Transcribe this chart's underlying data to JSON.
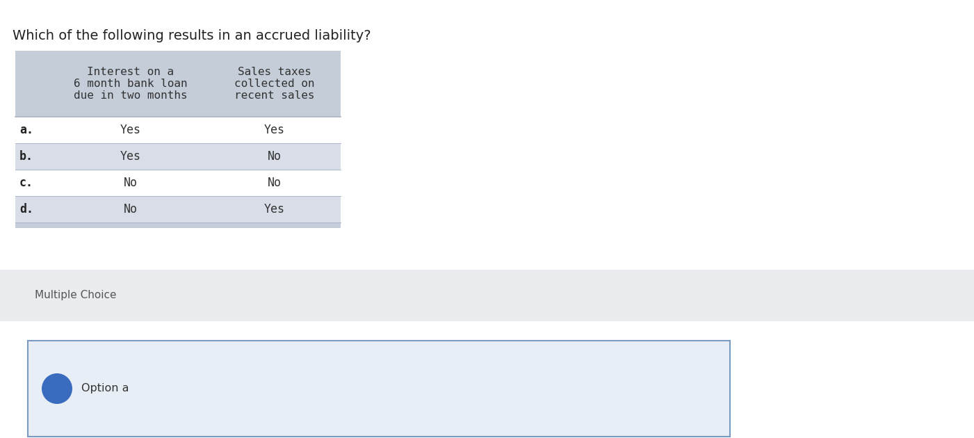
{
  "question": "Which of the following results in an accrued liability?",
  "question_fontsize": 14,
  "question_color": "#222222",
  "table": {
    "col1_header": "Interest on a\n6 month bank loan\ndue in two months",
    "col2_header": "Sales taxes\ncollected on\nrecent sales",
    "rows": [
      {
        "label": "a.",
        "col1": "Yes",
        "col2": "Yes"
      },
      {
        "label": "b.",
        "col1": "Yes",
        "col2": "No"
      },
      {
        "label": "c.",
        "col1": "No",
        "col2": "No"
      },
      {
        "label": "d.",
        "col1": "No",
        "col2": "Yes"
      }
    ],
    "header_bg": "#c5cdd9",
    "row_even_bg": "#ffffff",
    "row_odd_bg": "#d8dde8",
    "border_color": "#aab4c8",
    "label_color": "#222222",
    "cell_text_color": "#333333",
    "header_text_color": "#333333"
  },
  "multiple_choice_label": "Multiple Choice",
  "multiple_choice_bg": "#eaecf0",
  "option_label": "Option a",
  "option_box_bg": "#e8eef6",
  "option_box_border": "#7a9abf",
  "circle_color": "#3a6bbf",
  "background_color": "#ffffff",
  "fig_width": 14.01,
  "fig_height": 6.3,
  "dpi": 100
}
